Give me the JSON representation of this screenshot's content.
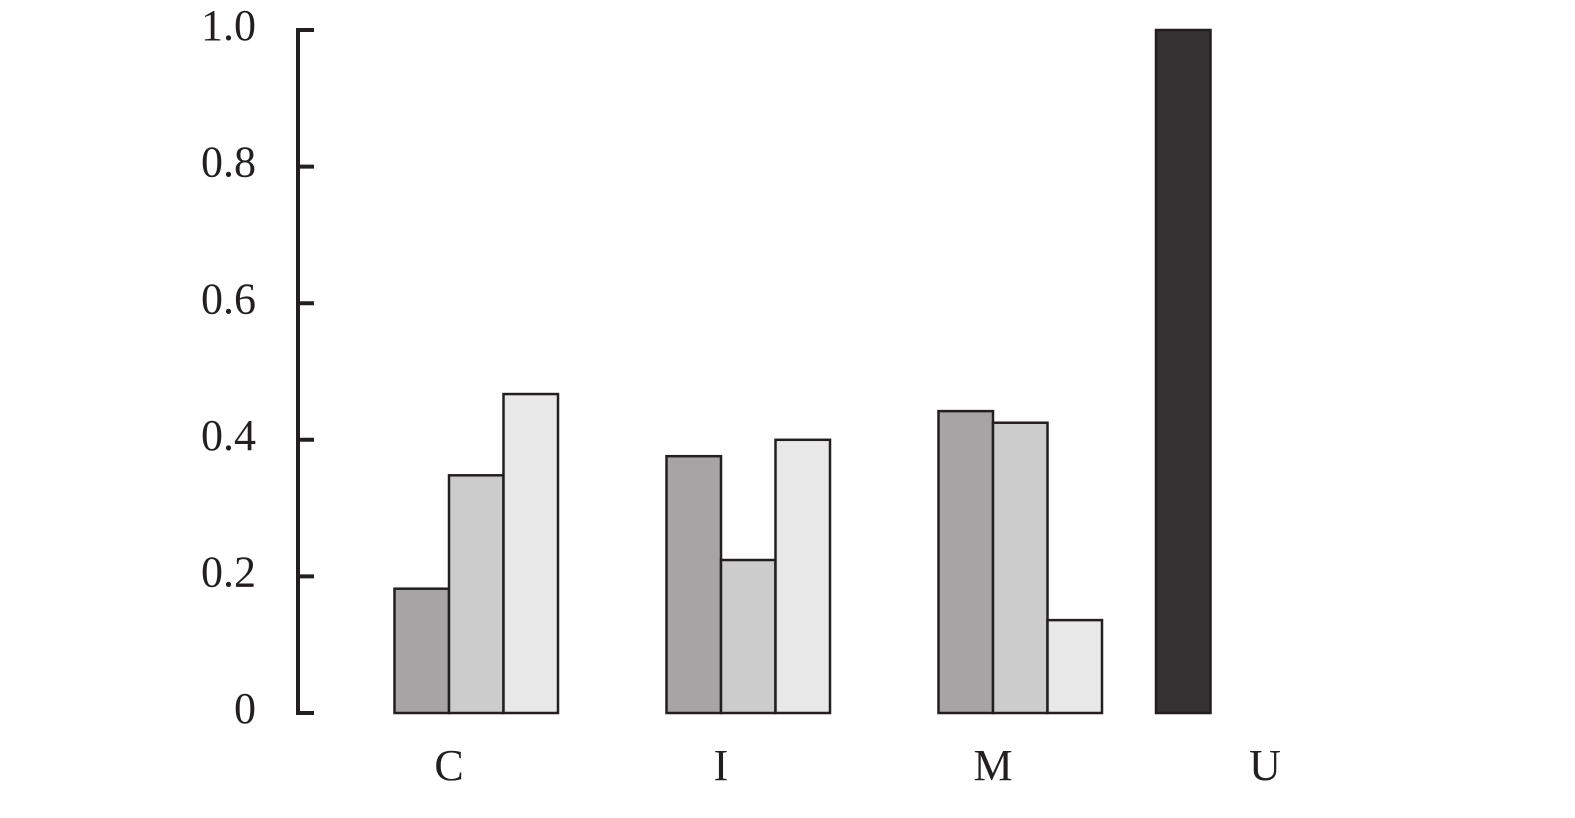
{
  "chart_data": {
    "type": "bar",
    "categories": [
      "C",
      "I",
      "M",
      "U"
    ],
    "series": [
      {
        "color": "#353233",
        "values": [
          0,
          0,
          0,
          1.0
        ]
      },
      {
        "color": "#a6a4a5",
        "values": [
          0.182,
          0.376,
          0.442,
          0
        ]
      },
      {
        "color": "#cccccc",
        "values": [
          0.348,
          0.224,
          0.425,
          0
        ]
      },
      {
        "color": "#e8e8e8",
        "values": [
          0.467,
          0.4,
          0.136,
          0
        ]
      }
    ],
    "ylim": [
      0,
      1.0
    ],
    "yticks": [
      0,
      0.2,
      0.4,
      0.6,
      0.8,
      {
        "value": 1.0,
        "label": "1.0"
      }
    ]
  }
}
